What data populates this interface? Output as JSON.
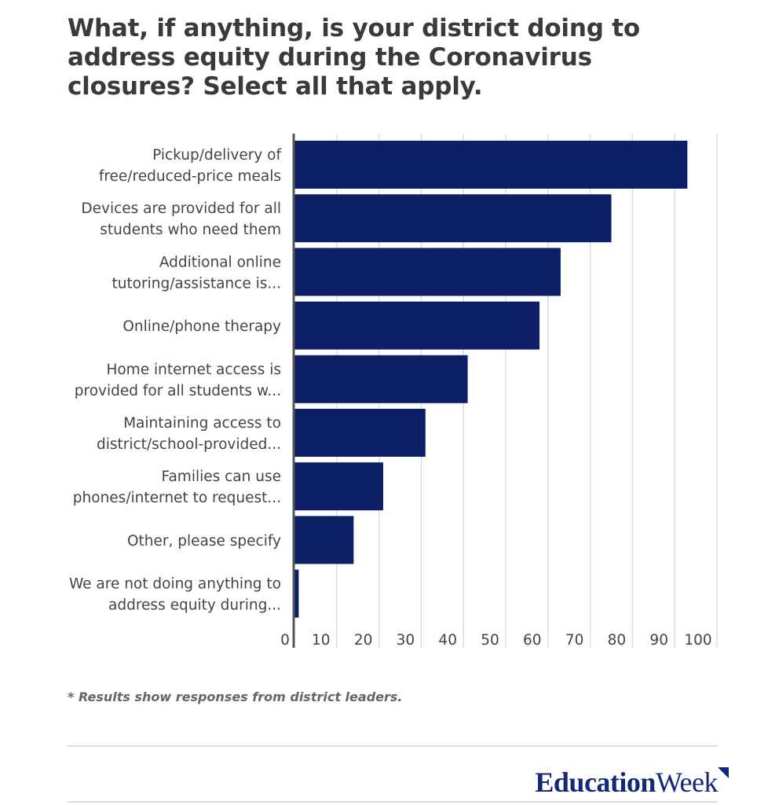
{
  "title": "What, if anything, is your district doing to address equity during the Coronavirus closures? Select all that apply.",
  "footnote": "* Results show responses from district leaders.",
  "logo": {
    "bold": "Education",
    "regular": "Week"
  },
  "colors": {
    "bar": "#0d1f66",
    "grid": "#d8d8d8",
    "axis": "#555555",
    "text": "#444444",
    "logo": "#13287a"
  },
  "chart_data": {
    "type": "bar",
    "orientation": "horizontal",
    "categories": [
      [
        "Pickup/delivery of",
        "free/reduced-price meals"
      ],
      [
        "Devices are provided for all",
        "students who need them"
      ],
      [
        "Additional online",
        "tutoring/assistance is..."
      ],
      [
        "Online/phone therapy"
      ],
      [
        "Home internet access is",
        "provided for all students w..."
      ],
      [
        "Maintaining access to",
        "district/school-provided..."
      ],
      [
        "Families can use",
        "phones/internet to request..."
      ],
      [
        "Other, please specify"
      ],
      [
        "We are not doing anything to",
        "address equity during..."
      ]
    ],
    "values": [
      93,
      75,
      63,
      58,
      41,
      31,
      21,
      14,
      1
    ],
    "xlim": [
      0,
      100
    ],
    "xticks": [
      0,
      10,
      20,
      30,
      40,
      50,
      60,
      70,
      80,
      90,
      100
    ],
    "grid": true
  }
}
